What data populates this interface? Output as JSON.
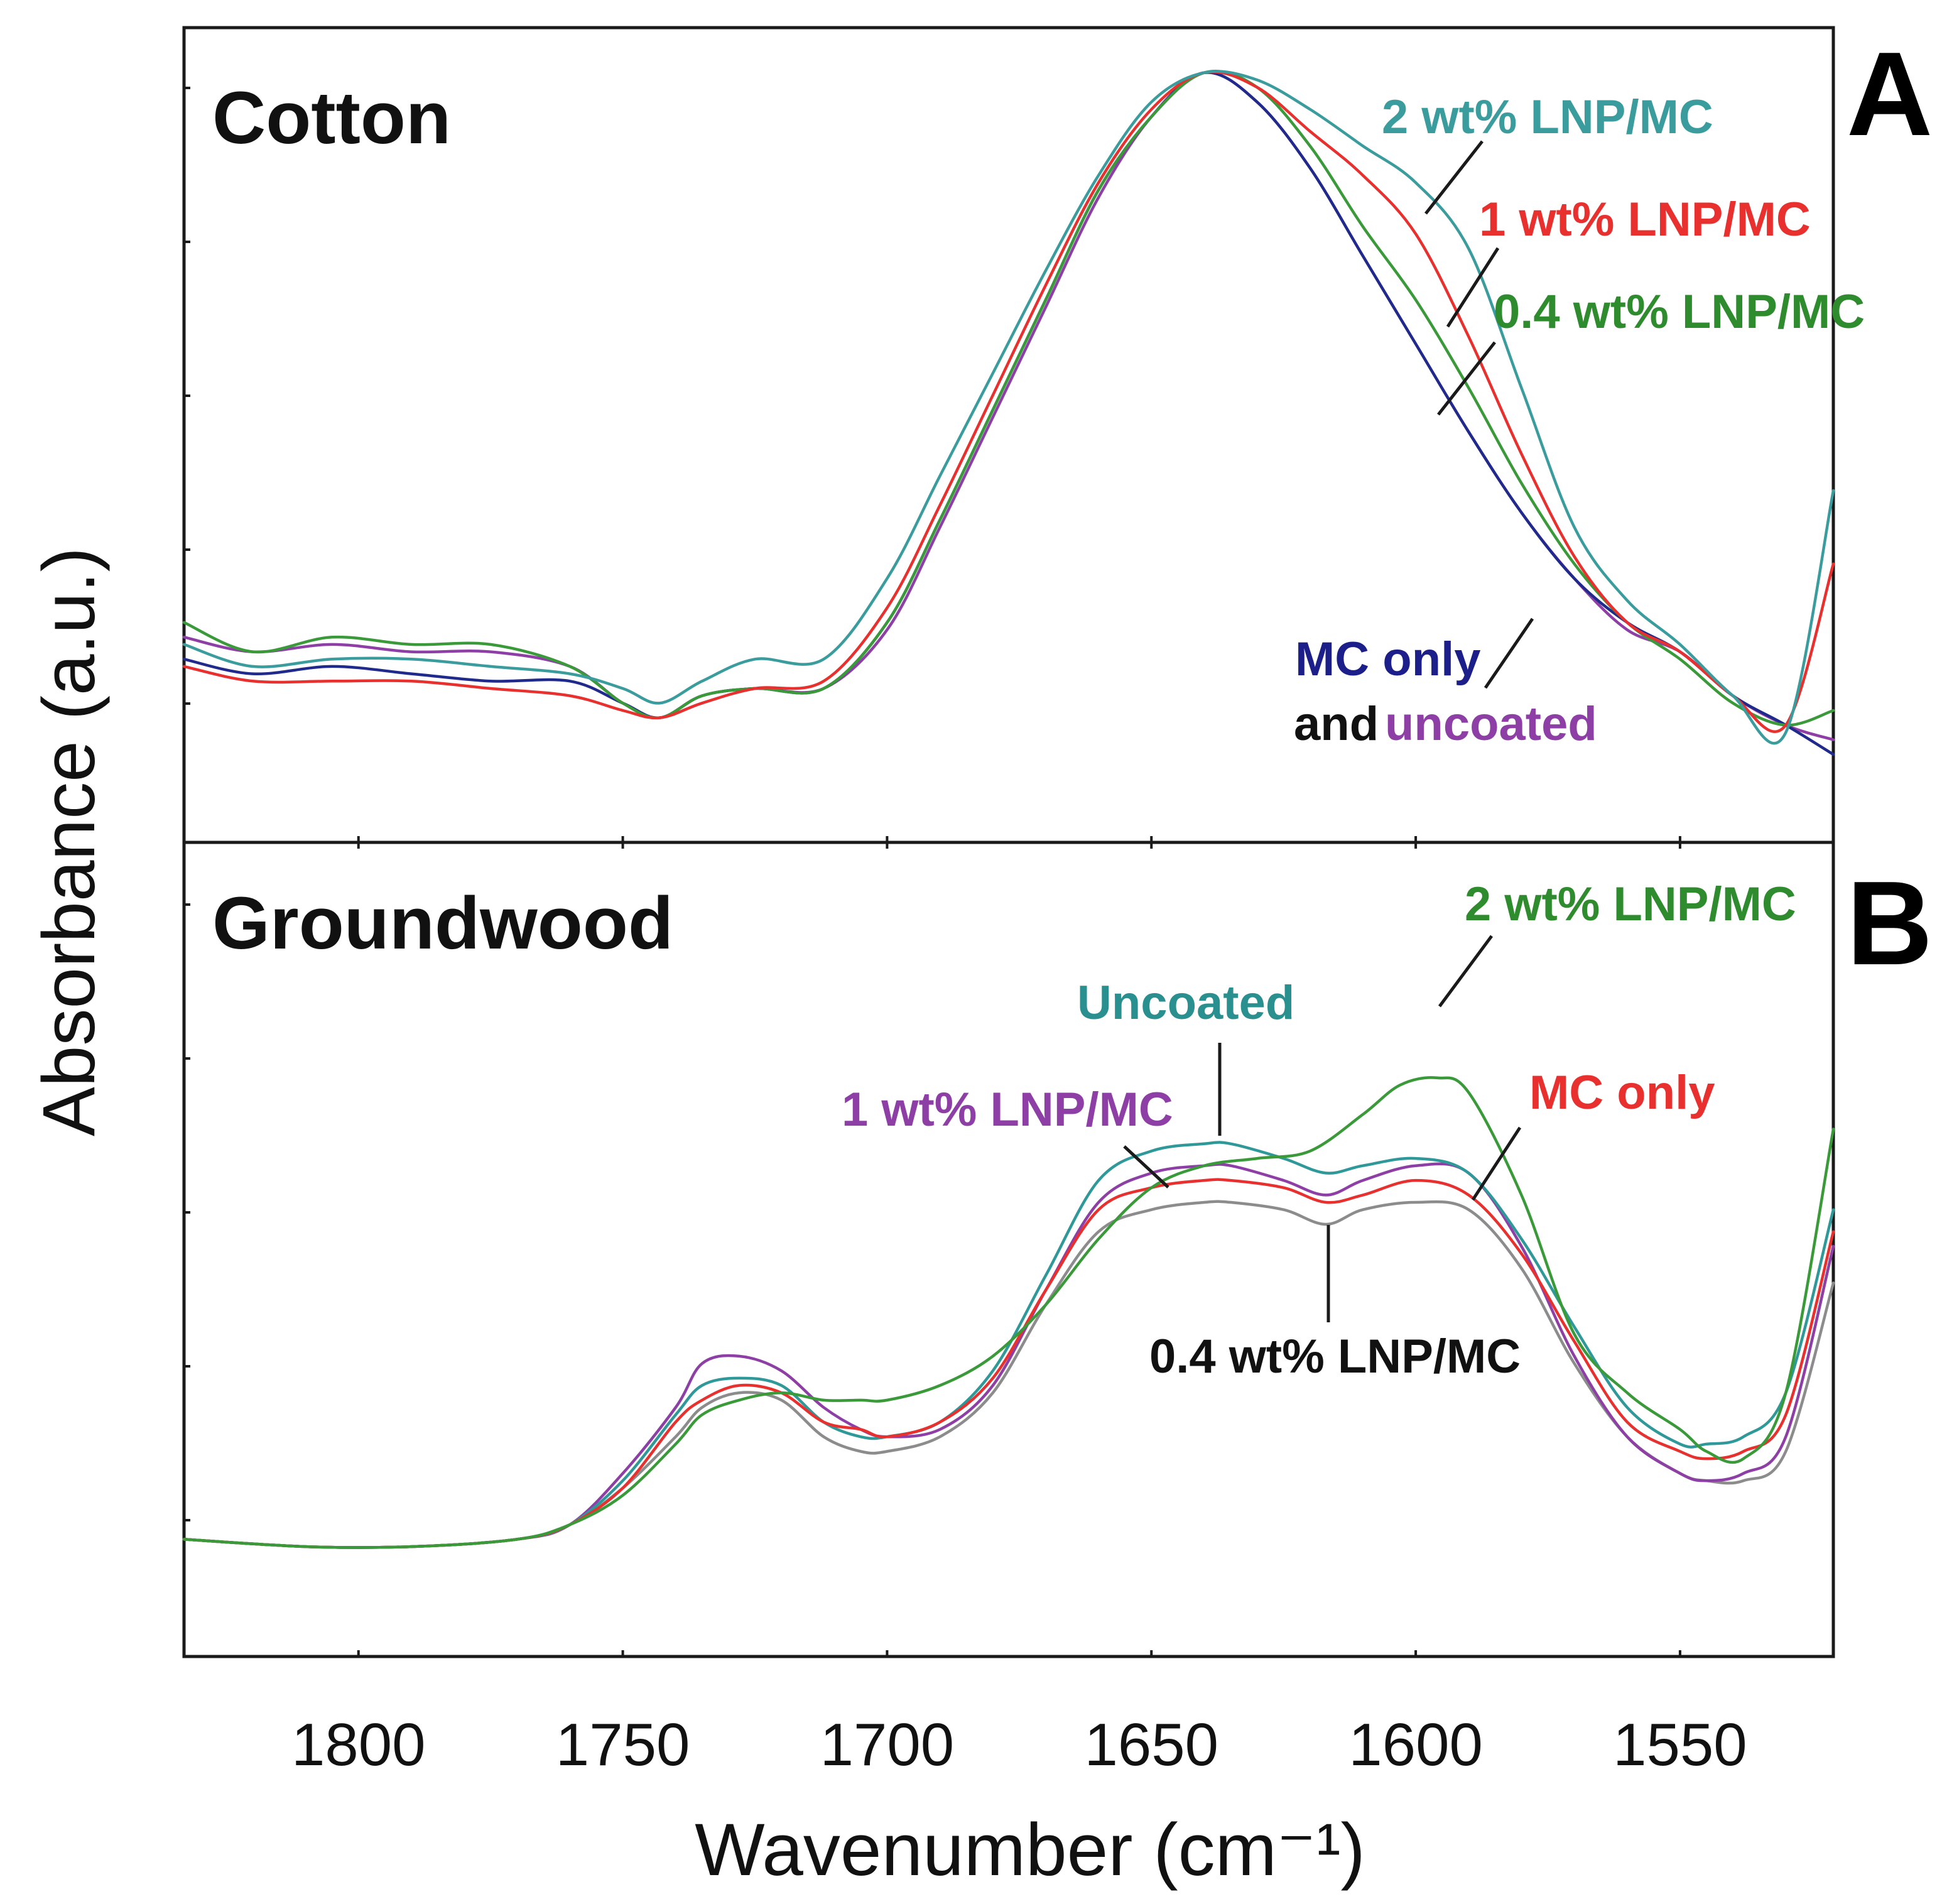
{
  "chart_data": [
    {
      "type": "line",
      "panel_title": "Cotton",
      "panel_letter": "A",
      "xlabel": "Wavenumber (cm⁻¹)",
      "ylabel": "Absorbance (a.u.)",
      "xlim": [
        1833,
        1521
      ],
      "ylim": [
        0,
        1
      ],
      "x_ticks": [
        1800,
        1750,
        1700,
        1650,
        1600,
        1550
      ],
      "grid": false,
      "series": [
        {
          "key": "uncoated",
          "color": "#8e3fa6",
          "x": [
            1833,
            1820,
            1805,
            1790,
            1775,
            1760,
            1750,
            1743,
            1735,
            1725,
            1712,
            1700,
            1690,
            1680,
            1670,
            1660,
            1650,
            1640,
            1630,
            1620,
            1610,
            1600,
            1590,
            1580,
            1570,
            1560,
            1550,
            1540,
            1530,
            1521
          ],
          "y": [
            0.22,
            0.2,
            0.21,
            0.2,
            0.2,
            0.18,
            0.13,
            0.11,
            0.14,
            0.15,
            0.15,
            0.23,
            0.37,
            0.52,
            0.67,
            0.82,
            0.93,
            0.99,
            0.95,
            0.86,
            0.74,
            0.62,
            0.5,
            0.39,
            0.3,
            0.23,
            0.2,
            0.14,
            0.1,
            0.08
          ]
        },
        {
          "key": "mc_only",
          "color": "#1f2a8c",
          "x": [
            1833,
            1820,
            1805,
            1790,
            1775,
            1760,
            1750,
            1743,
            1735,
            1725,
            1712,
            1700,
            1690,
            1680,
            1670,
            1660,
            1650,
            1640,
            1630,
            1620,
            1610,
            1600,
            1590,
            1580,
            1570,
            1560,
            1550,
            1540,
            1530,
            1521
          ],
          "y": [
            0.19,
            0.17,
            0.18,
            0.17,
            0.16,
            0.16,
            0.13,
            0.11,
            0.14,
            0.15,
            0.15,
            0.24,
            0.38,
            0.53,
            0.68,
            0.83,
            0.93,
            0.99,
            0.95,
            0.86,
            0.74,
            0.62,
            0.5,
            0.39,
            0.3,
            0.24,
            0.2,
            0.14,
            0.1,
            0.06
          ]
        },
        {
          "key": "w04",
          "color": "#3a9a3a",
          "x": [
            1833,
            1820,
            1805,
            1790,
            1775,
            1760,
            1750,
            1743,
            1735,
            1725,
            1712,
            1700,
            1690,
            1680,
            1670,
            1660,
            1650,
            1640,
            1630,
            1620,
            1610,
            1600,
            1590,
            1580,
            1570,
            1560,
            1550,
            1540,
            1530,
            1521
          ],
          "y": [
            0.24,
            0.2,
            0.22,
            0.21,
            0.21,
            0.18,
            0.13,
            0.11,
            0.14,
            0.15,
            0.15,
            0.24,
            0.38,
            0.53,
            0.68,
            0.83,
            0.93,
            0.99,
            0.97,
            0.89,
            0.78,
            0.68,
            0.56,
            0.43,
            0.32,
            0.24,
            0.19,
            0.13,
            0.1,
            0.12
          ]
        },
        {
          "key": "w1",
          "color": "#e8302e",
          "x": [
            1833,
            1820,
            1805,
            1790,
            1775,
            1760,
            1750,
            1743,
            1735,
            1725,
            1712,
            1700,
            1690,
            1680,
            1670,
            1660,
            1650,
            1640,
            1630,
            1620,
            1610,
            1600,
            1590,
            1580,
            1570,
            1560,
            1550,
            1540,
            1530,
            1521
          ],
          "y": [
            0.18,
            0.16,
            0.16,
            0.16,
            0.15,
            0.14,
            0.12,
            0.11,
            0.13,
            0.15,
            0.16,
            0.26,
            0.4,
            0.55,
            0.7,
            0.84,
            0.94,
            0.99,
            0.97,
            0.91,
            0.85,
            0.77,
            0.63,
            0.47,
            0.33,
            0.24,
            0.2,
            0.14,
            0.1,
            0.32
          ]
        },
        {
          "key": "w2",
          "color": "#3a9c9c",
          "x": [
            1833,
            1820,
            1805,
            1790,
            1775,
            1760,
            1750,
            1743,
            1735,
            1725,
            1712,
            1700,
            1690,
            1680,
            1670,
            1660,
            1650,
            1640,
            1630,
            1620,
            1610,
            1600,
            1590,
            1580,
            1570,
            1560,
            1550,
            1540,
            1530,
            1521
          ],
          "y": [
            0.21,
            0.18,
            0.19,
            0.19,
            0.18,
            0.17,
            0.15,
            0.13,
            0.16,
            0.19,
            0.19,
            0.3,
            0.44,
            0.58,
            0.72,
            0.85,
            0.95,
            0.99,
            0.98,
            0.94,
            0.89,
            0.84,
            0.75,
            0.56,
            0.37,
            0.27,
            0.21,
            0.14,
            0.09,
            0.42
          ]
        }
      ]
    },
    {
      "type": "line",
      "panel_title": "Groundwood",
      "panel_letter": "B",
      "xlim": [
        1833,
        1521
      ],
      "ylim": [
        0,
        1
      ],
      "x_ticks": [
        1800,
        1750,
        1700,
        1650,
        1600,
        1550
      ],
      "grid": false,
      "series": [
        {
          "key": "w04",
          "color": "#8c8c8c",
          "x": [
            1833,
            1810,
            1790,
            1770,
            1760,
            1750,
            1740,
            1735,
            1728,
            1720,
            1712,
            1705,
            1700,
            1690,
            1680,
            1670,
            1660,
            1650,
            1640,
            1635,
            1625,
            1617,
            1610,
            1600,
            1590,
            1580,
            1570,
            1560,
            1550,
            1545,
            1538,
            1530,
            1521
          ],
          "y": [
            0.1,
            0.09,
            0.09,
            0.1,
            0.12,
            0.17,
            0.24,
            0.28,
            0.3,
            0.29,
            0.24,
            0.22,
            0.22,
            0.24,
            0.3,
            0.42,
            0.52,
            0.55,
            0.56,
            0.56,
            0.55,
            0.53,
            0.55,
            0.56,
            0.55,
            0.47,
            0.34,
            0.24,
            0.19,
            0.18,
            0.18,
            0.22,
            0.45
          ]
        },
        {
          "key": "w1",
          "color": "#8e3fa6",
          "x": [
            1833,
            1810,
            1790,
            1770,
            1760,
            1750,
            1740,
            1735,
            1728,
            1720,
            1712,
            1705,
            1700,
            1690,
            1680,
            1670,
            1660,
            1650,
            1640,
            1635,
            1625,
            1617,
            1610,
            1600,
            1590,
            1580,
            1570,
            1560,
            1550,
            1545,
            1538,
            1530,
            1521
          ],
          "y": [
            0.1,
            0.09,
            0.09,
            0.1,
            0.12,
            0.19,
            0.28,
            0.34,
            0.35,
            0.33,
            0.28,
            0.25,
            0.24,
            0.25,
            0.31,
            0.44,
            0.56,
            0.6,
            0.61,
            0.61,
            0.59,
            0.57,
            0.59,
            0.61,
            0.6,
            0.5,
            0.35,
            0.24,
            0.19,
            0.18,
            0.19,
            0.24,
            0.5
          ]
        },
        {
          "key": "uncoated",
          "color": "#2f9898",
          "x": [
            1833,
            1810,
            1790,
            1770,
            1760,
            1750,
            1740,
            1735,
            1728,
            1720,
            1712,
            1705,
            1700,
            1690,
            1680,
            1670,
            1660,
            1650,
            1640,
            1635,
            1625,
            1617,
            1610,
            1600,
            1590,
            1580,
            1570,
            1560,
            1550,
            1545,
            1538,
            1530,
            1521
          ],
          "y": [
            0.1,
            0.09,
            0.09,
            0.1,
            0.12,
            0.18,
            0.27,
            0.31,
            0.32,
            0.31,
            0.26,
            0.24,
            0.24,
            0.26,
            0.33,
            0.46,
            0.59,
            0.63,
            0.64,
            0.64,
            0.62,
            0.6,
            0.61,
            0.62,
            0.6,
            0.51,
            0.39,
            0.28,
            0.23,
            0.23,
            0.24,
            0.3,
            0.55
          ]
        },
        {
          "key": "mc_only",
          "color": "#e8302e",
          "x": [
            1833,
            1810,
            1790,
            1770,
            1760,
            1750,
            1740,
            1735,
            1728,
            1720,
            1712,
            1705,
            1700,
            1690,
            1680,
            1670,
            1660,
            1650,
            1640,
            1635,
            1625,
            1617,
            1610,
            1600,
            1590,
            1580,
            1570,
            1560,
            1550,
            1545,
            1538,
            1530,
            1521
          ],
          "y": [
            0.1,
            0.09,
            0.09,
            0.1,
            0.12,
            0.17,
            0.26,
            0.29,
            0.31,
            0.3,
            0.26,
            0.25,
            0.24,
            0.26,
            0.32,
            0.44,
            0.55,
            0.58,
            0.59,
            0.59,
            0.58,
            0.56,
            0.57,
            0.59,
            0.57,
            0.49,
            0.37,
            0.26,
            0.22,
            0.21,
            0.22,
            0.27,
            0.52
          ]
        },
        {
          "key": "w2",
          "color": "#3a9a3a",
          "x": [
            1833,
            1810,
            1790,
            1770,
            1760,
            1750,
            1740,
            1735,
            1728,
            1720,
            1712,
            1705,
            1700,
            1690,
            1680,
            1670,
            1660,
            1650,
            1640,
            1630,
            1620,
            1610,
            1603,
            1596,
            1590,
            1580,
            1570,
            1560,
            1550,
            1545,
            1538,
            1530,
            1521
          ],
          "y": [
            0.1,
            0.09,
            0.09,
            0.1,
            0.12,
            0.16,
            0.23,
            0.27,
            0.29,
            0.3,
            0.29,
            0.29,
            0.29,
            0.31,
            0.35,
            0.42,
            0.51,
            0.58,
            0.61,
            0.62,
            0.63,
            0.68,
            0.72,
            0.73,
            0.71,
            0.57,
            0.38,
            0.3,
            0.25,
            0.22,
            0.21,
            0.3,
            0.66
          ]
        }
      ]
    }
  ],
  "labels": {
    "a_w2": "2 wt% LNP/MC",
    "a_w1": "1 wt% LNP/MC",
    "a_w04": "0.4 wt% LNP/MC",
    "a_mc": "MC only",
    "a_and": "and",
    "a_uncoated": "uncoated",
    "b_w2": "2 wt% LNP/MC",
    "b_uncoated": "Uncoated",
    "b_w1": "1 wt% LNP/MC",
    "b_mc": "MC only",
    "b_w04": "0.4 wt% LNP/MC"
  },
  "colors": {
    "teal": "#3a9c9c",
    "red": "#e8302e",
    "green": "#2e8b2e",
    "navy": "#1c1f8a",
    "purple": "#8e3fa6",
    "black": "#111111"
  }
}
